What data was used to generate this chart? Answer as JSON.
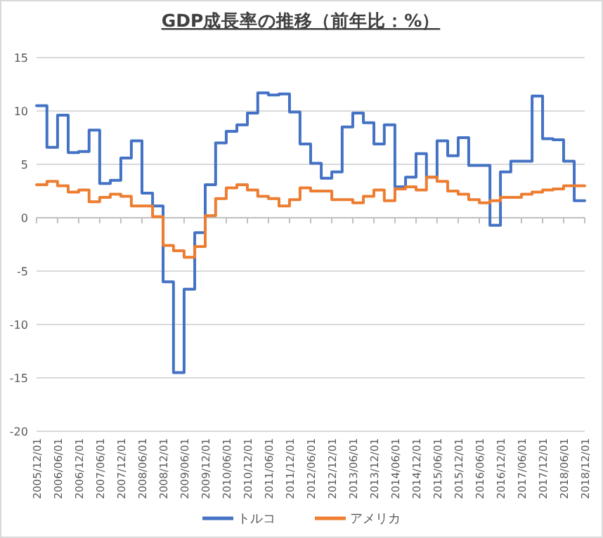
{
  "chart_data": {
    "type": "step",
    "title": "GDP成長率の推移（前年比：%）",
    "x": [
      "2005-12-01",
      "2006-03-01",
      "2006-06-01",
      "2006-09-01",
      "2006-12-01",
      "2007-03-01",
      "2007-06-01",
      "2007-09-01",
      "2007-12-01",
      "2008-03-01",
      "2008-06-01",
      "2008-09-01",
      "2008-12-01",
      "2009-03-01",
      "2009-06-01",
      "2009-09-01",
      "2009-12-01",
      "2010-03-01",
      "2010-06-01",
      "2010-09-01",
      "2010-12-01",
      "2011-03-01",
      "2011-06-01",
      "2011-09-01",
      "2011-12-01",
      "2012-03-01",
      "2012-06-01",
      "2012-09-01",
      "2012-12-01",
      "2013-03-01",
      "2013-06-01",
      "2013-09-01",
      "2013-12-01",
      "2014-03-01",
      "2014-06-01",
      "2014-09-01",
      "2014-12-01",
      "2015-03-01",
      "2015-06-01",
      "2015-09-01",
      "2015-12-01",
      "2016-03-01",
      "2016-06-01",
      "2016-09-01",
      "2016-12-01",
      "2017-03-01",
      "2017-06-01",
      "2017-09-01",
      "2017-12-01",
      "2018-03-01",
      "2018-06-01",
      "2018-09-01",
      "2018-12-01"
    ],
    "series": [
      {
        "name": "トルコ",
        "color": "#4472c4",
        "values": [
          10.5,
          6.6,
          9.6,
          6.1,
          6.2,
          8.2,
          3.2,
          3.5,
          5.6,
          7.2,
          2.3,
          1.1,
          -6.0,
          -14.5,
          -6.7,
          -1.4,
          3.1,
          7.0,
          8.1,
          8.7,
          9.8,
          11.7,
          11.5,
          11.6,
          9.9,
          6.9,
          5.1,
          3.7,
          4.3,
          8.5,
          9.8,
          8.9,
          6.9,
          8.7,
          2.9,
          3.8,
          6.0,
          3.8,
          7.2,
          5.8,
          7.5,
          4.9,
          4.9,
          -0.7,
          4.3,
          5.3,
          5.3,
          11.4,
          7.4,
          7.3,
          5.3,
          1.6,
          1.6
        ]
      },
      {
        "name": "アメリカ",
        "color": "#ed7d31",
        "values": [
          3.1,
          3.4,
          3.0,
          2.4,
          2.6,
          1.5,
          1.9,
          2.2,
          2.0,
          1.1,
          1.1,
          0.1,
          -2.6,
          -3.1,
          -3.7,
          -2.7,
          0.2,
          1.8,
          2.8,
          3.1,
          2.6,
          2.0,
          1.8,
          1.1,
          1.7,
          2.8,
          2.5,
          2.5,
          1.7,
          1.7,
          1.4,
          2.0,
          2.6,
          1.6,
          2.7,
          2.9,
          2.6,
          3.8,
          3.4,
          2.5,
          2.2,
          1.7,
          1.4,
          1.6,
          1.9,
          1.9,
          2.2,
          2.4,
          2.6,
          2.7,
          3.0,
          3.0,
          3.0
        ]
      }
    ],
    "xlim": [
      "2005-12-01",
      "2018-12-01"
    ],
    "xticks": [
      {
        "value": "2005-12-01",
        "label": "2005/12/01"
      },
      {
        "value": "2006-06-01",
        "label": "2006/06/01"
      },
      {
        "value": "2006-12-01",
        "label": "2006/12/01"
      },
      {
        "value": "2007-06-01",
        "label": "2007/06/01"
      },
      {
        "value": "2007-12-01",
        "label": "2007/12/01"
      },
      {
        "value": "2008-06-01",
        "label": "2008/06/01"
      },
      {
        "value": "2008-12-01",
        "label": "2008/12/01"
      },
      {
        "value": "2009-06-01",
        "label": "2009/06/01"
      },
      {
        "value": "2009-12-01",
        "label": "2009/12/01"
      },
      {
        "value": "2010-06-01",
        "label": "2010/06/01"
      },
      {
        "value": "2010-12-01",
        "label": "2010/12/01"
      },
      {
        "value": "2011-06-01",
        "label": "2011/06/01"
      },
      {
        "value": "2011-12-01",
        "label": "2011/12/01"
      },
      {
        "value": "2012-06-01",
        "label": "2012/06/01"
      },
      {
        "value": "2012-12-01",
        "label": "2012/12/01"
      },
      {
        "value": "2013-06-01",
        "label": "2013/06/01"
      },
      {
        "value": "2013-12-01",
        "label": "2013/12/01"
      },
      {
        "value": "2014-06-01",
        "label": "2014/06/01"
      },
      {
        "value": "2014-12-01",
        "label": "2014/12/01"
      },
      {
        "value": "2015-06-01",
        "label": "2015/06/01"
      },
      {
        "value": "2015-12-01",
        "label": "2015/12/01"
      },
      {
        "value": "2016-06-01",
        "label": "2016/06/01"
      },
      {
        "value": "2016-12-01",
        "label": "2016/12/01"
      },
      {
        "value": "2017-06-01",
        "label": "2017/06/01"
      },
      {
        "value": "2017-12-01",
        "label": "2017/12/01"
      },
      {
        "value": "2018-06-01",
        "label": "2018/06/01"
      },
      {
        "value": "2018-12-01",
        "label": "2018/12/01"
      }
    ],
    "ylim": [
      -20,
      15
    ],
    "yticks": [
      -20,
      -15,
      -10,
      -5,
      0,
      5,
      10,
      15
    ],
    "grid": "y",
    "legend": "bottom"
  }
}
